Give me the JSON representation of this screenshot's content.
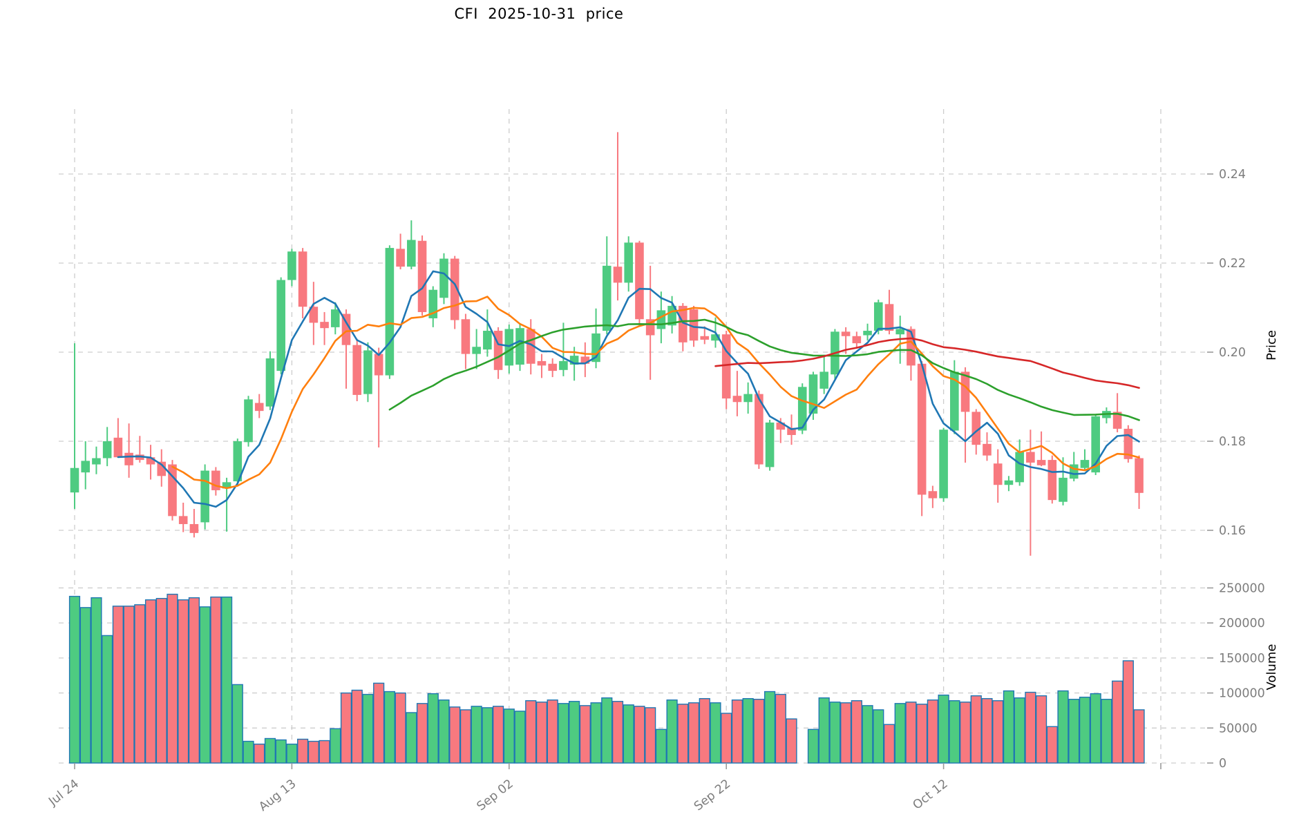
{
  "title": "CFI  2025-10-31  price",
  "chart_data": {
    "type": "candlestick",
    "title": "CFI  2025-10-31  price",
    "grid": true,
    "price_axis": {
      "label": "Price",
      "side": "right",
      "ticks": [
        0.16,
        0.18,
        0.2,
        0.22,
        0.24
      ],
      "tick_labels": [
        "0.16",
        "0.18",
        "0.20",
        "0.22",
        "0.24"
      ],
      "range": [
        0.15,
        0.258
      ]
    },
    "volume_axis": {
      "label": "Volume",
      "side": "right",
      "ticks": [
        0,
        50000,
        100000,
        150000,
        200000,
        250000
      ],
      "tick_labels": [
        "0",
        "50000",
        "100000",
        "150000",
        "200000",
        "250000"
      ],
      "range": [
        0,
        275000
      ]
    },
    "x_axis": {
      "ticks": [
        {
          "index": 0,
          "label": "Jul 24"
        },
        {
          "index": 20,
          "label": "Aug 13"
        },
        {
          "index": 40,
          "label": "Sep 02"
        },
        {
          "index": 60,
          "label": "Sep 22"
        },
        {
          "index": 80,
          "label": "Oct 12"
        },
        {
          "index": 100,
          "label": ""
        }
      ],
      "label_rotation_deg": -38
    },
    "colors": {
      "up": "#4ecb81",
      "down": "#f8797f",
      "volume_edge": "#1f77b4",
      "grid": "#cdcdcd",
      "tick_text": "#7d7d7d",
      "tick_mark": "#9a9a9a",
      "axis_title_text": "#000000",
      "background": "#ffffff"
    },
    "moving_averages": [
      {
        "name": "MA5",
        "window": 5,
        "color": "#1f77b4"
      },
      {
        "name": "MA10",
        "window": 10,
        "color": "#ff7f0e"
      },
      {
        "name": "MA30",
        "window": 30,
        "color": "#2ca02c"
      },
      {
        "name": "MA60",
        "window": 60,
        "color": "#d62728"
      }
    ],
    "series_format": [
      "open",
      "high",
      "low",
      "close",
      "volume"
    ],
    "candles": [
      [
        0.1685,
        0.202,
        0.1648,
        0.174,
        238000
      ],
      [
        0.173,
        0.18,
        0.1692,
        0.1756,
        222000
      ],
      [
        0.1748,
        0.1788,
        0.1726,
        0.1762,
        236000
      ],
      [
        0.1762,
        0.1832,
        0.1744,
        0.18,
        182000
      ],
      [
        0.1808,
        0.1852,
        0.1782,
        0.1764,
        224000
      ],
      [
        0.1774,
        0.184,
        0.1718,
        0.1746,
        224000
      ],
      [
        0.177,
        0.1812,
        0.1752,
        0.1758,
        226000
      ],
      [
        0.1764,
        0.1792,
        0.1714,
        0.1748,
        233000
      ],
      [
        0.1754,
        0.1782,
        0.1698,
        0.1722,
        235000
      ],
      [
        0.1748,
        0.1758,
        0.1622,
        0.1632,
        241000
      ],
      [
        0.1632,
        0.1662,
        0.1596,
        0.1614,
        233000
      ],
      [
        0.1614,
        0.1648,
        0.1584,
        0.1594,
        236000
      ],
      [
        0.1618,
        0.1748,
        0.1602,
        0.1734,
        223000
      ],
      [
        0.1734,
        0.1742,
        0.1678,
        0.169,
        237000
      ],
      [
        0.1694,
        0.1718,
        0.1597,
        0.1708,
        237000
      ],
      [
        0.171,
        0.1806,
        0.1702,
        0.18,
        112000
      ],
      [
        0.1798,
        0.1902,
        0.1788,
        0.1894,
        31000
      ],
      [
        0.1886,
        0.1906,
        0.1852,
        0.1868,
        27000
      ],
      [
        0.1878,
        0.2002,
        0.187,
        0.1986,
        35000
      ],
      [
        0.1958,
        0.2168,
        0.195,
        0.2162,
        33000
      ],
      [
        0.2162,
        0.2232,
        0.2148,
        0.2226,
        27000
      ],
      [
        0.2226,
        0.2234,
        0.2076,
        0.2102,
        34000
      ],
      [
        0.2102,
        0.2158,
        0.2016,
        0.2066,
        31000
      ],
      [
        0.2068,
        0.209,
        0.2016,
        0.2054,
        32000
      ],
      [
        0.2056,
        0.2112,
        0.204,
        0.2096,
        49000
      ],
      [
        0.2086,
        0.2096,
        0.1918,
        0.2016,
        100000
      ],
      [
        0.2016,
        0.203,
        0.189,
        0.1904,
        104000
      ],
      [
        0.1906,
        0.2022,
        0.1888,
        0.2004,
        98000
      ],
      [
        0.1996,
        0.201,
        0.1786,
        0.1948,
        114000
      ],
      [
        0.1948,
        0.224,
        0.194,
        0.2234,
        102000
      ],
      [
        0.2232,
        0.2266,
        0.2186,
        0.2192,
        100000
      ],
      [
        0.2192,
        0.2296,
        0.2186,
        0.2252,
        72000
      ],
      [
        0.225,
        0.2262,
        0.2082,
        0.209,
        85000
      ],
      [
        0.2076,
        0.2148,
        0.2056,
        0.214,
        99000
      ],
      [
        0.2122,
        0.2222,
        0.2108,
        0.221,
        90000
      ],
      [
        0.221,
        0.2216,
        0.2052,
        0.2072,
        80000
      ],
      [
        0.2074,
        0.2086,
        0.1962,
        0.1996,
        76000
      ],
      [
        0.1996,
        0.2052,
        0.1962,
        0.2012,
        81000
      ],
      [
        0.2006,
        0.2096,
        0.199,
        0.2048,
        79000
      ],
      [
        0.2048,
        0.2056,
        0.194,
        0.196,
        81000
      ],
      [
        0.197,
        0.2062,
        0.1952,
        0.2052,
        77000
      ],
      [
        0.1972,
        0.2064,
        0.1958,
        0.2054,
        74000
      ],
      [
        0.2052,
        0.2074,
        0.195,
        0.1974,
        89000
      ],
      [
        0.198,
        0.1996,
        0.1942,
        0.197,
        87000
      ],
      [
        0.1974,
        0.1986,
        0.1944,
        0.1958,
        90000
      ],
      [
        0.196,
        0.2066,
        0.1946,
        0.198,
        85000
      ],
      [
        0.1972,
        0.2012,
        0.1936,
        0.1992,
        88000
      ],
      [
        0.199,
        0.2022,
        0.1944,
        0.1974,
        82000
      ],
      [
        0.1978,
        0.2098,
        0.1964,
        0.2042,
        86000
      ],
      [
        0.2048,
        0.226,
        0.204,
        0.2194,
        93000
      ],
      [
        0.2192,
        0.2494,
        0.2116,
        0.2156,
        88000
      ],
      [
        0.2156,
        0.226,
        0.2136,
        0.2246,
        83000
      ],
      [
        0.2246,
        0.225,
        0.2058,
        0.2074,
        81000
      ],
      [
        0.2074,
        0.2194,
        0.1938,
        0.2038,
        79000
      ],
      [
        0.2052,
        0.2136,
        0.202,
        0.2094,
        48000
      ],
      [
        0.206,
        0.2126,
        0.2042,
        0.2104,
        90000
      ],
      [
        0.2104,
        0.211,
        0.2002,
        0.2022,
        84000
      ],
      [
        0.2096,
        0.2104,
        0.2012,
        0.2026,
        86000
      ],
      [
        0.2036,
        0.2058,
        0.2018,
        0.2028,
        92000
      ],
      [
        0.2026,
        0.2078,
        0.201,
        0.204,
        86000
      ],
      [
        0.204,
        0.2048,
        0.1872,
        0.1896,
        71000
      ],
      [
        0.1902,
        0.1958,
        0.1856,
        0.1888,
        90000
      ],
      [
        0.1888,
        0.1932,
        0.1862,
        0.1906,
        92000
      ],
      [
        0.1906,
        0.1914,
        0.1738,
        0.1748,
        91000
      ],
      [
        0.1742,
        0.1848,
        0.1734,
        0.1842,
        102000
      ],
      [
        0.1842,
        0.1852,
        0.1796,
        0.1826,
        98000
      ],
      [
        0.183,
        0.186,
        0.1792,
        0.1814,
        63000
      ],
      [
        0.1824,
        0.193,
        0.1816,
        0.1922,
        0
      ],
      [
        0.1862,
        0.1956,
        0.1848,
        0.195,
        48000
      ],
      [
        0.1918,
        0.1994,
        0.1906,
        0.1956,
        93000
      ],
      [
        0.195,
        0.2052,
        0.194,
        0.2046,
        87000
      ],
      [
        0.2046,
        0.2056,
        0.1996,
        0.2036,
        86000
      ],
      [
        0.2036,
        0.2046,
        0.2008,
        0.202,
        89000
      ],
      [
        0.2038,
        0.2064,
        0.2026,
        0.2048,
        82000
      ],
      [
        0.2048,
        0.2118,
        0.204,
        0.2112,
        76000
      ],
      [
        0.2108,
        0.214,
        0.204,
        0.2048,
        55000
      ],
      [
        0.204,
        0.2082,
        0.1974,
        0.2052,
        85000
      ],
      [
        0.2052,
        0.2058,
        0.1936,
        0.197,
        87000
      ],
      [
        0.1974,
        0.198,
        0.1632,
        0.168,
        84000
      ],
      [
        0.1688,
        0.17,
        0.165,
        0.1672,
        90000
      ],
      [
        0.1672,
        0.183,
        0.1664,
        0.1826,
        97000
      ],
      [
        0.1824,
        0.1982,
        0.1816,
        0.1956,
        89000
      ],
      [
        0.1956,
        0.1966,
        0.1752,
        0.1866,
        87000
      ],
      [
        0.1866,
        0.1872,
        0.177,
        0.1792,
        96000
      ],
      [
        0.1794,
        0.182,
        0.1756,
        0.1768,
        92000
      ],
      [
        0.175,
        0.1782,
        0.1662,
        0.1702,
        89000
      ],
      [
        0.1702,
        0.1722,
        0.1688,
        0.1712,
        103000
      ],
      [
        0.1708,
        0.1804,
        0.17,
        0.1776,
        93000
      ],
      [
        0.1776,
        0.1826,
        0.1543,
        0.1752,
        101000
      ],
      [
        0.1758,
        0.1822,
        0.1744,
        0.1746,
        96000
      ],
      [
        0.1758,
        0.1768,
        0.166,
        0.1668,
        52000
      ],
      [
        0.1664,
        0.1764,
        0.1656,
        0.1718,
        103000
      ],
      [
        0.1716,
        0.1776,
        0.171,
        0.1748,
        91000
      ],
      [
        0.174,
        0.1782,
        0.1734,
        0.1758,
        94000
      ],
      [
        0.173,
        0.186,
        0.1724,
        0.1856,
        99000
      ],
      [
        0.1852,
        0.1876,
        0.184,
        0.1868,
        91000
      ],
      [
        0.1866,
        0.1908,
        0.182,
        0.1828,
        117000
      ],
      [
        0.1828,
        0.1836,
        0.1752,
        0.176,
        146000
      ],
      [
        0.1762,
        0.1768,
        0.1648,
        0.1684,
        76000
      ]
    ]
  }
}
